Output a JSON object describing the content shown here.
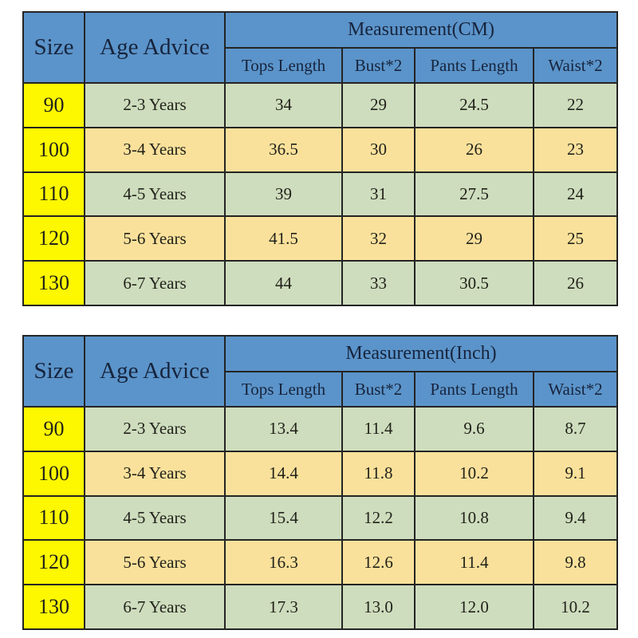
{
  "colors": {
    "header_blue": "#5B94CA",
    "header_text": "#17243D",
    "size_yellow": "#FDF800",
    "row_green": "#CEDDBD",
    "row_tan": "#FAE19B",
    "border": "#242424",
    "body_text": "#22221B"
  },
  "chart_data": [
    {
      "type": "table",
      "title": "Measurement(CM)",
      "columns": [
        "Size",
        "Age Advice",
        "Tops Length",
        "Bust*2",
        "Pants Length",
        "Waist*2"
      ],
      "rows": [
        [
          "90",
          "2-3 Years",
          "34",
          "29",
          "24.5",
          "22"
        ],
        [
          "100",
          "3-4 Years",
          "36.5",
          "30",
          "26",
          "23"
        ],
        [
          "110",
          "4-5 Years",
          "39",
          "31",
          "27.5",
          "24"
        ],
        [
          "120",
          "5-6 Years",
          "41.5",
          "32",
          "29",
          "25"
        ],
        [
          "130",
          "6-7 Years",
          "44",
          "33",
          "30.5",
          "26"
        ]
      ]
    },
    {
      "type": "table",
      "title": "Measurement(Inch)",
      "columns": [
        "Size",
        "Age Advice",
        "Tops Length",
        "Bust*2",
        "Pants Length",
        "Waist*2"
      ],
      "rows": [
        [
          "90",
          "2-3 Years",
          "13.4",
          "11.4",
          "9.6",
          "8.7"
        ],
        [
          "100",
          "3-4 Years",
          "14.4",
          "11.8",
          "10.2",
          "9.1"
        ],
        [
          "110",
          "4-5 Years",
          "15.4",
          "12.2",
          "10.8",
          "9.4"
        ],
        [
          "120",
          "5-6 Years",
          "16.3",
          "12.6",
          "11.4",
          "9.8"
        ],
        [
          "130",
          "6-7 Years",
          "17.3",
          "13.0",
          "12.0",
          "10.2"
        ]
      ]
    }
  ]
}
